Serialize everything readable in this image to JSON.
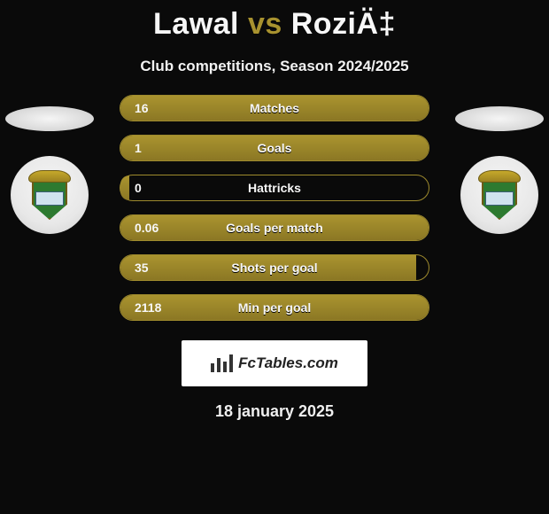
{
  "title": {
    "left_name": "Lawal",
    "vs": "vs",
    "right_name": "RoziÄ‡"
  },
  "subtitle": "Club competitions, Season 2024/2025",
  "colors": {
    "accent": "#a8922f",
    "bar_fill_top": "#aa942f",
    "bar_fill_bottom": "#8b7724",
    "bar_border": "#9e8a2d",
    "background": "#0a0a0a",
    "text": "#f7f7f7",
    "logo_green": "#2d7a30",
    "logo_gold": "#c6a92b",
    "logo_band": "#cfe3ef"
  },
  "stats": {
    "row_width": 350,
    "rows": [
      {
        "label": "Matches",
        "left": "16",
        "fill_pct": 100
      },
      {
        "label": "Goals",
        "left": "1",
        "fill_pct": 100
      },
      {
        "label": "Hattricks",
        "left": "0",
        "fill_pct": 3
      },
      {
        "label": "Goals per match",
        "left": "0.06",
        "fill_pct": 100
      },
      {
        "label": "Shots per goal",
        "left": "35",
        "fill_pct": 96
      },
      {
        "label": "Min per goal",
        "left": "2118",
        "fill_pct": 100
      }
    ]
  },
  "brand": {
    "text": "FcTables.com"
  },
  "date": "18 january 2025"
}
